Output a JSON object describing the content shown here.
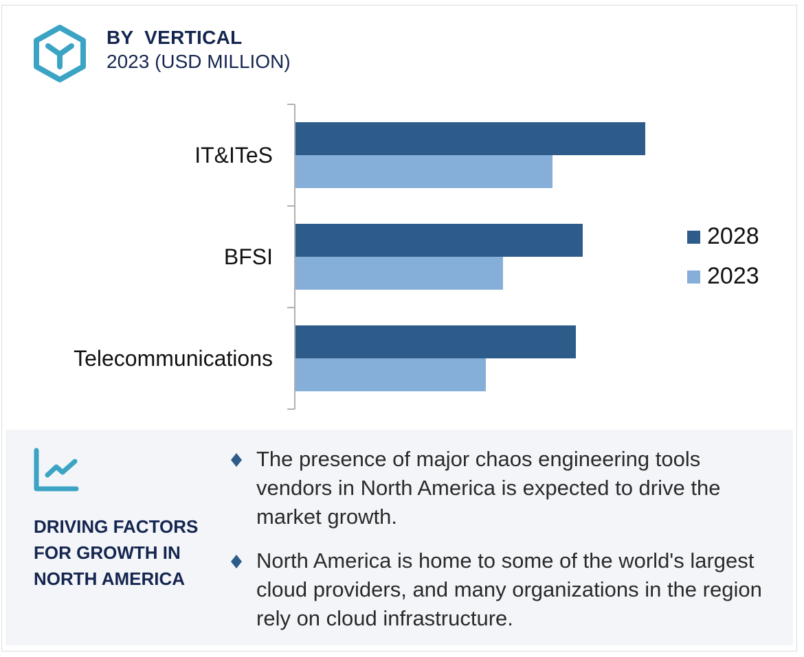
{
  "header": {
    "icon": "hexagon-y-icon",
    "title": "BY  VERTICAL",
    "subtitle": "2023 (USD MILLION)"
  },
  "colors": {
    "series_2028": "#2d5b8a",
    "series_2023": "#85afd8",
    "accent": "#3ba4c4",
    "heading": "#14254f",
    "panel_bg": "#f3f5f9",
    "axis": "#b0b0b0"
  },
  "chart_data": {
    "type": "bar",
    "orientation": "horizontal",
    "title": "BY VERTICAL 2023 (USD MILLION)",
    "categories": [
      "IT&ITeS",
      "BFSI",
      "Telecommunications"
    ],
    "series": [
      {
        "name": "2028",
        "values": [
          509,
          418,
          408
        ]
      },
      {
        "name": "2023",
        "values": [
          374,
          302,
          277
        ]
      }
    ],
    "value_axis": {
      "visible": false,
      "min": 0,
      "max": 560,
      "units": "relative (no scale shown)"
    },
    "xlabel": "",
    "ylabel": "",
    "grid": false,
    "legend": {
      "position": "right",
      "entries": [
        "2028",
        "2023"
      ]
    }
  },
  "panel": {
    "icon": "line-chart-icon",
    "title": "DRIVING FACTORS FOR GROWTH IN NORTH AMERICA",
    "bullets": [
      "The presence of major chaos engineering tools vendors in North America is expected to drive the market growth.",
      "North America is home to some of the world's largest cloud providers, and many organizations in the region rely on cloud infrastructure."
    ]
  }
}
